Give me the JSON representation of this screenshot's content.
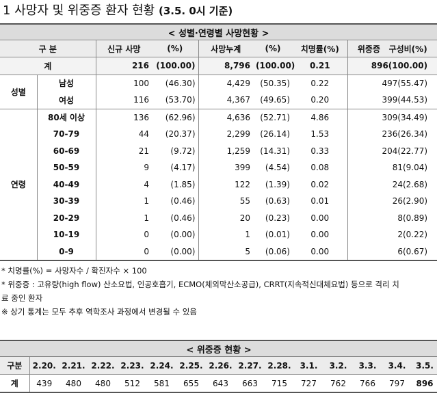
{
  "title": {
    "main": "1  사망자 및 위중증 환자 현황",
    "sub": "(3.5. 0시 기준)"
  },
  "table1": {
    "caption": "< 성별·연령별 사망현황 >",
    "headers": {
      "gubun": "구 분",
      "new_deaths": "신규 사망",
      "pct1": "(%)",
      "cumulative": "사망누계",
      "pct2": "(%)",
      "fatality": "치명률(%)",
      "severe": "위중증",
      "composition": "구성비(%)"
    },
    "total": {
      "label": "계",
      "new": "216",
      "new_pct": "(100.00)",
      "cum": "8,796",
      "cum_pct": "(100.00)",
      "fatality": "0.21",
      "severe": "896(100.00)"
    },
    "sex_group": "성별",
    "age_group": "연령",
    "sex_rows": [
      {
        "label": "남성",
        "new": "100",
        "new_pct": "(46.30)",
        "cum": "4,429",
        "cum_pct": "(50.35)",
        "fatality": "0.22",
        "severe": "497(55.47)"
      },
      {
        "label": "여성",
        "new": "116",
        "new_pct": "(53.70)",
        "cum": "4,367",
        "cum_pct": "(49.65)",
        "fatality": "0.20",
        "severe": "399(44.53)"
      }
    ],
    "age_rows": [
      {
        "label": "80세 이상",
        "new": "136",
        "new_pct": "(62.96)",
        "cum": "4,636",
        "cum_pct": "(52.71)",
        "fatality": "4.86",
        "severe": "309(34.49)"
      },
      {
        "label": "70-79",
        "new": "44",
        "new_pct": "(20.37)",
        "cum": "2,299",
        "cum_pct": "(26.14)",
        "fatality": "1.53",
        "severe": "236(26.34)"
      },
      {
        "label": "60-69",
        "new": "21",
        "new_pct": "(9.72)",
        "cum": "1,259",
        "cum_pct": "(14.31)",
        "fatality": "0.33",
        "severe": "204(22.77)"
      },
      {
        "label": "50-59",
        "new": "9",
        "new_pct": "(4.17)",
        "cum": "399",
        "cum_pct": "(4.54)",
        "fatality": "0.08",
        "severe": "81(9.04)"
      },
      {
        "label": "40-49",
        "new": "4",
        "new_pct": "(1.85)",
        "cum": "122",
        "cum_pct": "(1.39)",
        "fatality": "0.02",
        "severe": "24(2.68)"
      },
      {
        "label": "30-39",
        "new": "1",
        "new_pct": "(0.46)",
        "cum": "55",
        "cum_pct": "(0.63)",
        "fatality": "0.01",
        "severe": "26(2.90)"
      },
      {
        "label": "20-29",
        "new": "1",
        "new_pct": "(0.46)",
        "cum": "20",
        "cum_pct": "(0.23)",
        "fatality": "0.00",
        "severe": "8(0.89)"
      },
      {
        "label": "10-19",
        "new": "0",
        "new_pct": "(0.00)",
        "cum": "1",
        "cum_pct": "(0.01)",
        "fatality": "0.00",
        "severe": "2(0.22)"
      },
      {
        "label": "0-9",
        "new": "0",
        "new_pct": "(0.00)",
        "cum": "5",
        "cum_pct": "(0.06)",
        "fatality": "0.00",
        "severe": "6(0.67)"
      }
    ]
  },
  "notes": [
    "* 치명률(%) = 사망자수 / 확진자수 × 100",
    "* 위중증 : 고유량(high flow) 산소요법, 인공호흡기, ECMO(체외막산소공급), CRRT(지속적신대체요법) 등으로 격리 치",
    "료 중인 환자",
    "※ 상기 통계는 모두 추후 역학조사 과정에서 변경될 수 있음"
  ],
  "table2": {
    "caption": "< 위중증 현황 >",
    "row_header": "구분",
    "total_label": "계",
    "dates": [
      "2.20.",
      "2.21.",
      "2.22.",
      "2.23.",
      "2.24.",
      "2.25.",
      "2.26.",
      "2.27.",
      "2.28.",
      "3.1.",
      "3.2.",
      "3.3.",
      "3.4.",
      "3.5."
    ],
    "values": [
      "439",
      "480",
      "480",
      "512",
      "581",
      "655",
      "643",
      "663",
      "715",
      "727",
      "762",
      "766",
      "797",
      "896"
    ]
  }
}
